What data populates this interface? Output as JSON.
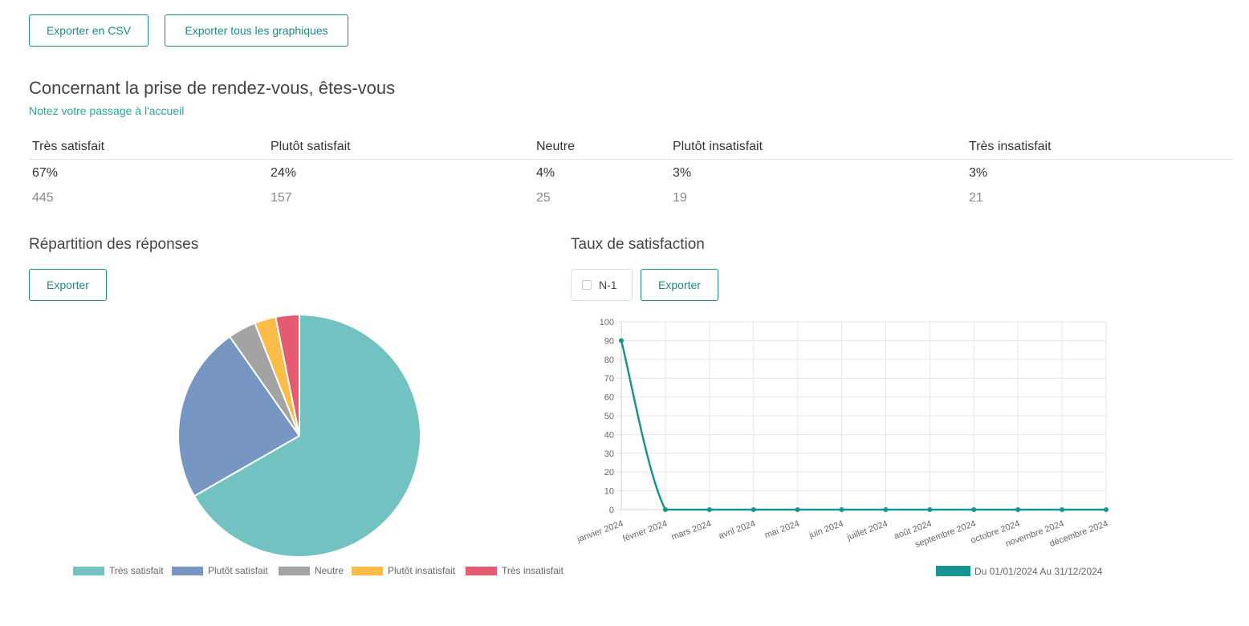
{
  "toolbar": {
    "export_csv_label": "Exporter en CSV",
    "export_all_label": "Exporter tous les graphiques"
  },
  "question": {
    "title": "Concernant la prise de rendez-vous, êtes-vous",
    "subtitle": "Notez votre passage à l'accueil"
  },
  "summary": {
    "headers": [
      "Très satisfait",
      "Plutôt satisfait",
      "Neutre",
      "Plutôt insatisfait",
      "Très insatisfait"
    ],
    "percentages": [
      "67%",
      "24%",
      "4%",
      "3%",
      "3%"
    ],
    "counts": [
      "445",
      "157",
      "25",
      "19",
      "21"
    ]
  },
  "pie_section": {
    "title": "Répartition des réponses",
    "export_label": "Exporter"
  },
  "line_section": {
    "title": "Taux de satisfaction",
    "n1_label": "N-1",
    "n1_checked": false,
    "export_label": "Exporter"
  },
  "chart_data": [
    {
      "type": "pie",
      "categories": [
        "Très satisfait",
        "Plutôt satisfait",
        "Neutre",
        "Plutôt insatisfait",
        "Très insatisfait"
      ],
      "values": [
        445,
        157,
        25,
        19,
        21
      ],
      "colors": [
        "#72c2c1",
        "#7896c4",
        "#a3a3a3",
        "#fbbd47",
        "#e55b71"
      ],
      "legend_position": "bottom"
    },
    {
      "type": "line",
      "x": [
        "janvier 2024",
        "février 2024",
        "mars 2024",
        "avril 2024",
        "mai 2024",
        "juin 2024",
        "juillet 2024",
        "août 2024",
        "septembre 2024",
        "octobre 2024",
        "novembre 2024",
        "décembre 2024"
      ],
      "series": [
        {
          "name": "Du 01/01/2024 Au 31/12/2024",
          "values": [
            90,
            0,
            0,
            0,
            0,
            0,
            0,
            0,
            0,
            0,
            0,
            0
          ],
          "color": "#1a9490"
        }
      ],
      "ylim": [
        0,
        100
      ],
      "yticks": [
        0,
        10,
        20,
        30,
        40,
        50,
        60,
        70,
        80,
        90,
        100
      ],
      "grid": true,
      "legend_position": "bottom-right"
    }
  ]
}
